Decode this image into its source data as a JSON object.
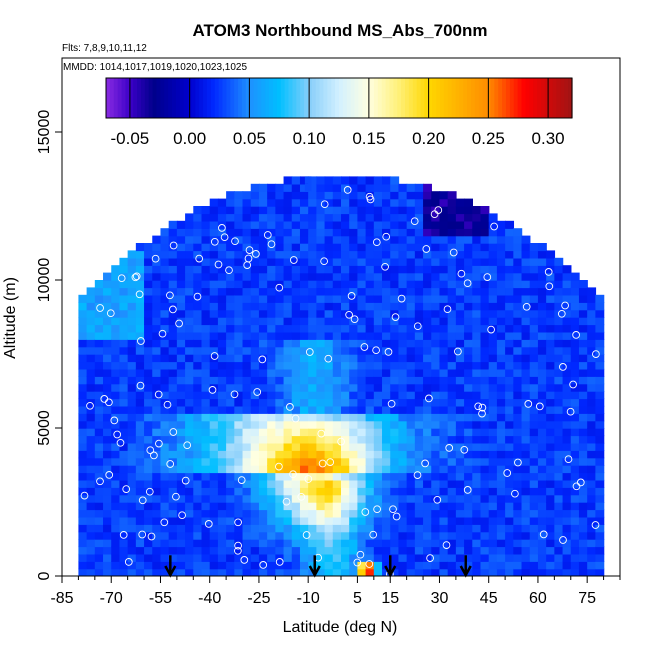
{
  "chart_data": {
    "type": "heatmap",
    "title": "ATOM3 Northbound MS_Abs_700nm",
    "subtitle_flights": "Flts: 7,8,9,10,11,12",
    "subtitle_dates": "MMDD: 1014,1017,1019,1020,1023,1025",
    "xlabel": "Latitude (deg N)",
    "ylabel": "Altitude (m)",
    "xlim": [
      -85,
      85
    ],
    "ylim": [
      0,
      17500
    ],
    "x_ticks": [
      "-85",
      "-70",
      "-55",
      "-40",
      "-25",
      "-10",
      "5",
      "15",
      "30",
      "45",
      "60",
      "75"
    ],
    "x_tick_values": [
      -85,
      -70,
      -55,
      -40,
      -25,
      -10,
      5,
      15,
      30,
      45,
      60,
      75
    ],
    "y_ticks": [
      "0",
      "5000",
      "10000",
      "15000"
    ],
    "y_tick_values": [
      0,
      5000,
      10000,
      15000
    ],
    "colorbar": {
      "range": [
        -0.07,
        0.32
      ],
      "tick_labels": [
        "-0.05",
        "0.00",
        "0.05",
        "0.10",
        "0.15",
        "0.20",
        "0.25",
        "0.30"
      ],
      "tick_values": [
        -0.05,
        0.0,
        0.05,
        0.1,
        0.15,
        0.2,
        0.25,
        0.3
      ],
      "colors": [
        "#8a2be2",
        "#00008b",
        "#0000ff",
        "#1e90ff",
        "#00bfff",
        "#bfefff",
        "#ffffe0",
        "#ffd700",
        "#ff8c00",
        "#ff0000",
        "#b22222"
      ]
    },
    "arrows_lat": [
      -52,
      -8,
      15,
      38
    ],
    "grid": false,
    "legend": "colorbar-top"
  }
}
